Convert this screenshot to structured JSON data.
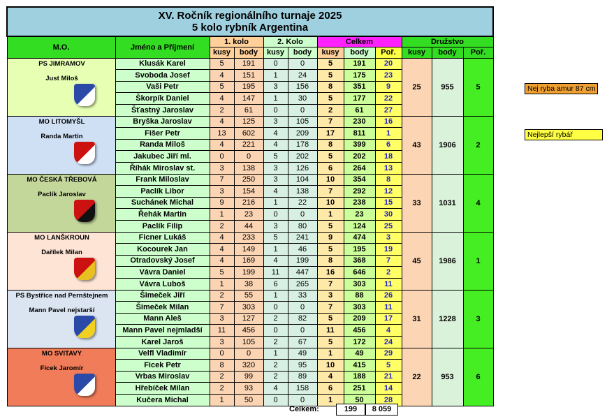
{
  "title": "XV. Ročník regionálního turnaje 2025",
  "subtitle": "5 kolo rybník Argentina",
  "headers": {
    "mo": "M.O.",
    "name": "Jméno a Příjmení",
    "round1": "1. kolo",
    "round2": "2. Kolo",
    "total": "Celkem",
    "team": "Družstvo",
    "kusy": "kusy",
    "body": "body",
    "por": "Poř."
  },
  "teams": [
    {
      "club": "PS JIMRAMOV",
      "leader": "Just Miloš",
      "crest_colors": [
        "#2b4aa8",
        "#ffffff"
      ],
      "team_kusy": "25",
      "team_body": "955",
      "team_por": "5",
      "rows": [
        {
          "name": "Klusák Karel",
          "k1": "5",
          "b1": "191",
          "k2": "0",
          "b2": "0",
          "tk": "5",
          "tb": "191",
          "por": "20"
        },
        {
          "name": "Svoboda Josef",
          "k1": "4",
          "b1": "151",
          "k2": "1",
          "b2": "24",
          "tk": "5",
          "tb": "175",
          "por": "23"
        },
        {
          "name": "Vaši Petr",
          "k1": "5",
          "b1": "195",
          "k2": "3",
          "b2": "156",
          "tk": "8",
          "tb": "351",
          "por": "9"
        },
        {
          "name": "Škorpík Daniel",
          "k1": "4",
          "b1": "147",
          "k2": "1",
          "b2": "30",
          "tk": "5",
          "tb": "177",
          "por": "22"
        },
        {
          "name": "Šťastný Jaroslav",
          "k1": "2",
          "b1": "61",
          "k2": "0",
          "b2": "0",
          "tk": "2",
          "tb": "61",
          "por": "27"
        }
      ]
    },
    {
      "club": "MO LITOMYŠL",
      "leader": "Randa Martin",
      "crest_colors": [
        "#cc1111",
        "#ffffff"
      ],
      "team_kusy": "43",
      "team_body": "1906",
      "team_por": "2",
      "rows": [
        {
          "name": "Bryška Jaroslav",
          "k1": "4",
          "b1": "125",
          "k2": "3",
          "b2": "105",
          "tk": "7",
          "tb": "230",
          "por": "16"
        },
        {
          "name": "Fišer Petr",
          "k1": "13",
          "b1": "602",
          "k2": "4",
          "b2": "209",
          "tk": "17",
          "tb": "811",
          "por": "1"
        },
        {
          "name": "Randa Miloš",
          "k1": "4",
          "b1": "221",
          "k2": "4",
          "b2": "178",
          "tk": "8",
          "tb": "399",
          "por": "6"
        },
        {
          "name": "Jakubec Jiří ml.",
          "k1": "0",
          "b1": "0",
          "k2": "5",
          "b2": "202",
          "tk": "5",
          "tb": "202",
          "por": "18"
        },
        {
          "name": "Říhák Miroslav st.",
          "k1": "3",
          "b1": "138",
          "k2": "3",
          "b2": "126",
          "tk": "6",
          "tb": "264",
          "por": "13"
        }
      ]
    },
    {
      "club": "MO ČESKÁ TŘEBOVÁ",
      "leader": "Paclík Jaroslav",
      "crest_colors": [
        "#cc1111",
        "#111111"
      ],
      "team_kusy": "33",
      "team_body": "1031",
      "team_por": "4",
      "rows": [
        {
          "name": "Frank Miloslav",
          "k1": "7",
          "b1": "250",
          "k2": "3",
          "b2": "104",
          "tk": "10",
          "tb": "354",
          "por": "8"
        },
        {
          "name": "Paclík Libor",
          "k1": "3",
          "b1": "154",
          "k2": "4",
          "b2": "138",
          "tk": "7",
          "tb": "292",
          "por": "12"
        },
        {
          "name": "Suchánek Michal",
          "k1": "9",
          "b1": "216",
          "k2": "1",
          "b2": "22",
          "tk": "10",
          "tb": "238",
          "por": "15"
        },
        {
          "name": "Řehák Martin",
          "k1": "1",
          "b1": "23",
          "k2": "0",
          "b2": "0",
          "tk": "1",
          "tb": "23",
          "por": "30"
        },
        {
          "name": "Paclík Filip",
          "k1": "2",
          "b1": "44",
          "k2": "3",
          "b2": "80",
          "tk": "5",
          "tb": "124",
          "por": "25"
        }
      ]
    },
    {
      "club": "MO LANŠKROUN",
      "leader": "Dařílek Milan",
      "crest_colors": [
        "#cc1111",
        "#e8c020"
      ],
      "team_kusy": "45",
      "team_body": "1986",
      "team_por": "1",
      "rows": [
        {
          "name": "Ficner Lukáš",
          "k1": "4",
          "b1": "233",
          "k2": "5",
          "b2": "241",
          "tk": "9",
          "tb": "474",
          "por": "3"
        },
        {
          "name": "Kocourek Jan",
          "k1": "4",
          "b1": "149",
          "k2": "1",
          "b2": "46",
          "tk": "5",
          "tb": "195",
          "por": "19"
        },
        {
          "name": "Otradovský Josef",
          "k1": "4",
          "b1": "169",
          "k2": "4",
          "b2": "199",
          "tk": "8",
          "tb": "368",
          "por": "7"
        },
        {
          "name": "Vávra Daniel",
          "k1": "5",
          "b1": "199",
          "k2": "11",
          "b2": "447",
          "tk": "16",
          "tb": "646",
          "por": "2"
        },
        {
          "name": "Vávra Luboš",
          "k1": "1",
          "b1": "38",
          "k2": "6",
          "b2": "265",
          "tk": "7",
          "tb": "303",
          "por": "11"
        }
      ]
    },
    {
      "club": "PS Bystřice nad Pernštejnem",
      "leader": "Mann Pavel nejstarší",
      "crest_colors": [
        "#2b4aa8",
        "#f0d020"
      ],
      "team_kusy": "31",
      "team_body": "1228",
      "team_por": "3",
      "rows": [
        {
          "name": "Šimeček Jiří",
          "k1": "2",
          "b1": "55",
          "k2": "1",
          "b2": "33",
          "tk": "3",
          "tb": "88",
          "por": "26"
        },
        {
          "name": "Šimeček Milan",
          "k1": "7",
          "b1": "303",
          "k2": "0",
          "b2": "0",
          "tk": "7",
          "tb": "303",
          "por": "11"
        },
        {
          "name": "Mann Aleš",
          "k1": "3",
          "b1": "127",
          "k2": "2",
          "b2": "82",
          "tk": "5",
          "tb": "209",
          "por": "17"
        },
        {
          "name": "Mann Pavel nejmladší",
          "k1": "11",
          "b1": "456",
          "k2": "0",
          "b2": "0",
          "tk": "11",
          "tb": "456",
          "por": "4"
        },
        {
          "name": "Karel Jaroš",
          "k1": "3",
          "b1": "105",
          "k2": "2",
          "b2": "67",
          "tk": "5",
          "tb": "172",
          "por": "24"
        }
      ]
    },
    {
      "club": "MO SVITAVY",
      "leader": "Ficek Jaromír",
      "crest_colors": [
        "#2b4aa8",
        "#ffffff"
      ],
      "team_kusy": "22",
      "team_body": "953",
      "team_por": "6",
      "rows": [
        {
          "name": "Velfl Vladimír",
          "k1": "0",
          "b1": "0",
          "k2": "1",
          "b2": "49",
          "tk": "1",
          "tb": "49",
          "por": "29"
        },
        {
          "name": "Ficek Petr",
          "k1": "8",
          "b1": "320",
          "k2": "2",
          "b2": "95",
          "tk": "10",
          "tb": "415",
          "por": "5"
        },
        {
          "name": "Vrbas Miroslav",
          "k1": "2",
          "b1": "99",
          "k2": "2",
          "b2": "89",
          "tk": "4",
          "tb": "188",
          "por": "21"
        },
        {
          "name": "Hřebíček Milan",
          "k1": "2",
          "b1": "93",
          "k2": "4",
          "b2": "158",
          "tk": "6",
          "tb": "251",
          "por": "14"
        },
        {
          "name": "Kučera Michal",
          "k1": "1",
          "b1": "50",
          "k2": "0",
          "b2": "0",
          "tk": "1",
          "tb": "50",
          "por": "28"
        }
      ]
    }
  ],
  "summary": {
    "label": "Celkem:",
    "kusy": "199",
    "body": "8 059"
  },
  "notes": {
    "biggest_fish": "Nej ryba amur 87 cm",
    "best_angler": "Nejlepší rybář"
  },
  "colors": {
    "club_bg": [
      "#e6ffb3",
      "#cfe0f5",
      "#c4d79b",
      "#fde4d4",
      "#dbe5f1",
      "#f07c5a"
    ],
    "accent_green": "#33dd22",
    "accent_magenta": "#ff22ff",
    "accent_yellow": "#ffff44"
  }
}
